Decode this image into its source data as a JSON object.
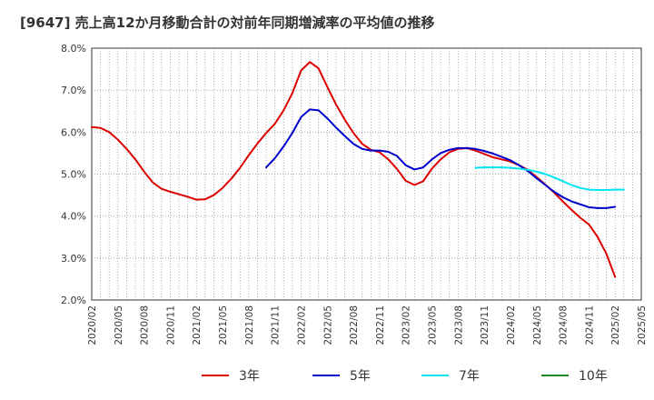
{
  "chart_data": {
    "type": "line",
    "title": "[9647]  売上高12か月移動合計の対前年同期増減率の平均値の推移",
    "xlabel": "",
    "ylabel": "",
    "ylim": [
      2.0,
      8.0
    ],
    "y_ticks": [
      "2.0%",
      "3.0%",
      "4.0%",
      "5.0%",
      "6.0%",
      "7.0%",
      "8.0%"
    ],
    "x_ticks": [
      "2020/02",
      "2020/05",
      "2020/08",
      "2020/11",
      "2021/02",
      "2021/05",
      "2021/08",
      "2021/11",
      "2022/02",
      "2022/05",
      "2022/08",
      "2022/11",
      "2023/02",
      "2023/05",
      "2023/08",
      "2023/11",
      "2024/02",
      "2024/05",
      "2024/08",
      "2024/11",
      "2025/02",
      "2025/05"
    ],
    "x_start": "2020/02",
    "grid": true,
    "legend_position": "bottom",
    "series": [
      {
        "name": "3年",
        "color": "#dd0000",
        "start": "2020/02",
        "values": [
          6.12,
          6.1,
          6.0,
          5.82,
          5.6,
          5.35,
          5.06,
          4.8,
          4.65,
          4.58,
          4.52,
          4.46,
          4.39,
          4.4,
          4.5,
          4.67,
          4.89,
          5.15,
          5.45,
          5.73,
          5.98,
          6.2,
          6.52,
          6.93,
          7.47,
          7.67,
          7.52,
          7.08,
          6.66,
          6.3,
          5.98,
          5.72,
          5.58,
          5.52,
          5.35,
          5.12,
          4.84,
          4.74,
          4.83,
          5.13,
          5.35,
          5.52,
          5.6,
          5.62,
          5.56,
          5.48,
          5.4,
          5.35,
          5.3,
          5.21,
          5.1,
          4.93,
          4.75,
          4.56,
          4.35,
          4.15,
          3.96,
          3.8,
          3.5,
          3.1,
          2.55
        ]
      },
      {
        "name": "5年",
        "color": "#0000cc",
        "start": "2021/10",
        "values": [
          5.16,
          5.38,
          5.66,
          5.98,
          6.36,
          6.54,
          6.52,
          6.33,
          6.11,
          5.91,
          5.72,
          5.6,
          5.56,
          5.56,
          5.53,
          5.43,
          5.21,
          5.11,
          5.16,
          5.35,
          5.5,
          5.58,
          5.62,
          5.62,
          5.6,
          5.55,
          5.49,
          5.41,
          5.33,
          5.21,
          5.07,
          4.9,
          4.74,
          4.58,
          4.45,
          4.35,
          4.28,
          4.21,
          4.19,
          4.19,
          4.22
        ]
      },
      {
        "name": "7年",
        "color": "#00e5ee",
        "start": "2023/10",
        "values": [
          5.15,
          5.16,
          5.16,
          5.16,
          5.15,
          5.13,
          5.1,
          5.06,
          5.0,
          4.92,
          4.83,
          4.74,
          4.67,
          4.63,
          4.62,
          4.62,
          4.63,
          4.63
        ]
      },
      {
        "name": "10年",
        "color": "#228822",
        "start": "",
        "values": []
      }
    ]
  }
}
